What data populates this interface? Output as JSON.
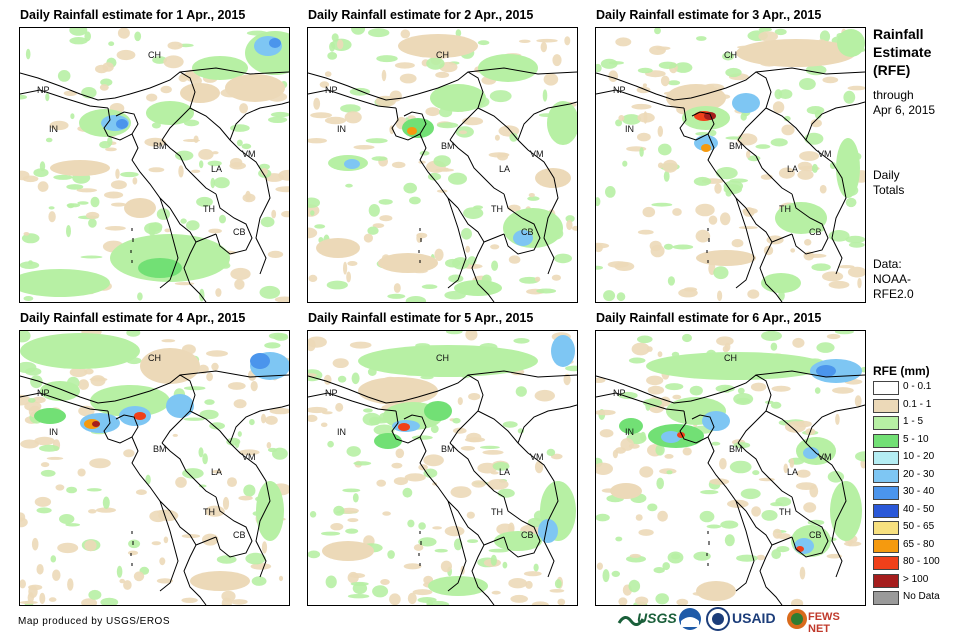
{
  "panels": [
    {
      "title": "Daily Rainfall estimate for 1 Apr., 2015"
    },
    {
      "title": "Daily Rainfall estimate for 2 Apr., 2015"
    },
    {
      "title": "Daily Rainfall estimate for 3 Apr., 2015"
    },
    {
      "title": "Daily Rainfall estimate for 4 Apr., 2015"
    },
    {
      "title": "Daily Rainfall estimate for 5 Apr., 2015"
    },
    {
      "title": "Daily Rainfall estimate for 6 Apr., 2015"
    }
  ],
  "country_labels": [
    "CH",
    "NP",
    "IN",
    "BM",
    "VM",
    "LA",
    "TH",
    "CB"
  ],
  "sidebar": {
    "title_line1": "Rainfall",
    "title_line2": "Estimate",
    "title_line3": "(RFE)",
    "through": "through",
    "date": "Apr 6, 2015",
    "daily": "Daily",
    "totals": "Totals",
    "data_label": "Data:",
    "data_src1": "NOAA-",
    "data_src2": "RFE2.0"
  },
  "legend": {
    "title": "RFE (mm)",
    "items": [
      {
        "label": "0 - 0.1",
        "color": "#ffffff"
      },
      {
        "label": "0.1 - 1",
        "color": "#ecd9b8"
      },
      {
        "label": "1 - 5",
        "color": "#b7f0a4"
      },
      {
        "label": "5 - 10",
        "color": "#72e075"
      },
      {
        "label": "10 - 20",
        "color": "#b4edf3"
      },
      {
        "label": "20 - 30",
        "color": "#7ec6f3"
      },
      {
        "label": "30 - 40",
        "color": "#4b95ec"
      },
      {
        "label": "40 - 50",
        "color": "#2a58d8"
      },
      {
        "label": "50 - 65",
        "color": "#f7e07f"
      },
      {
        "label": "65 - 80",
        "color": "#f59a0f"
      },
      {
        "label": "80 - 100",
        "color": "#f0401a"
      },
      {
        "label": "> 100",
        "color": "#a51d1d"
      },
      {
        "label": "No Data",
        "color": "#9a9a9a"
      }
    ]
  },
  "credit": "Map produced by USGS/EROS",
  "logos": {
    "usgs": "USGS",
    "usaid": "USAID",
    "fewsnet": "FEWS NET"
  }
}
